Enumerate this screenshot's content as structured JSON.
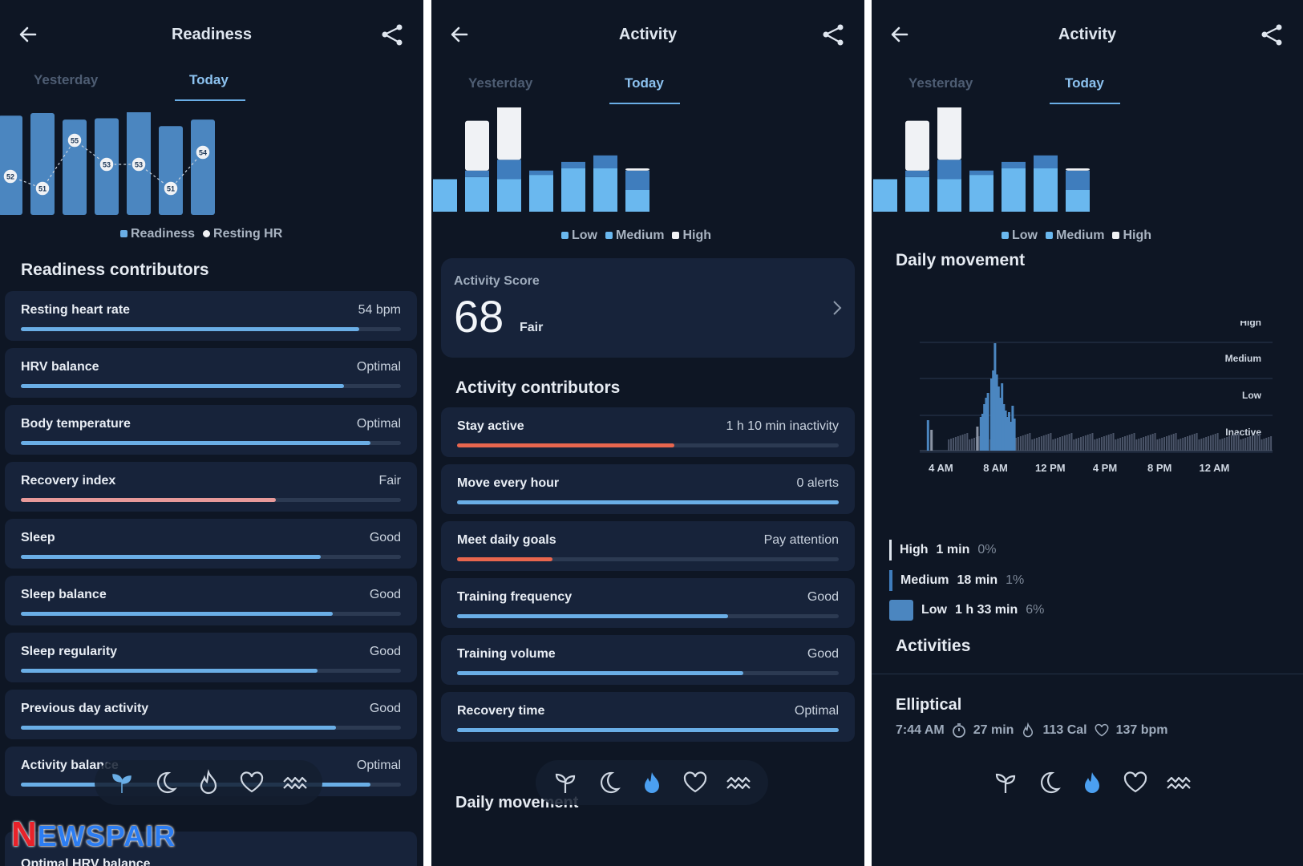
{
  "colors": {
    "background": "#0e1624",
    "card": "#17233a",
    "accent_blue": "#6aaee6",
    "bar_blue": "#4b86c0",
    "low": "#6ab8ef",
    "medium": "#3f7dbd",
    "high": "#f0f2f5",
    "warn_red": "#e8664e",
    "fair_pink": "#e89a9a"
  },
  "readiness": {
    "title": "Readiness",
    "tabs": [
      "Yesterday",
      "Today"
    ],
    "active_tab": 1,
    "chart_data": {
      "type": "bar",
      "series": [
        {
          "name": "Readiness",
          "values": [
            76,
            78,
            73,
            74,
            80,
            68,
            73
          ]
        },
        {
          "name": "Resting HR",
          "values": [
            52,
            51,
            55,
            53,
            53,
            51,
            54
          ]
        }
      ],
      "ylim": [
        0,
        100
      ],
      "hr_range": [
        50,
        56
      ]
    },
    "legend": [
      "Readiness",
      "Resting HR"
    ],
    "contributors_title": "Readiness contributors",
    "contributors": [
      {
        "label": "Resting heart rate",
        "value": "54 bpm",
        "progress": 0.89,
        "color": "#6aaee6"
      },
      {
        "label": "HRV balance",
        "value": "Optimal",
        "progress": 0.85,
        "color": "#6aaee6"
      },
      {
        "label": "Body temperature",
        "value": "Optimal",
        "progress": 0.92,
        "color": "#6aaee6"
      },
      {
        "label": "Recovery index",
        "value": "Fair",
        "progress": 0.67,
        "color": "#e89a9a"
      },
      {
        "label": "Sleep",
        "value": "Good",
        "progress": 0.79,
        "color": "#6aaee6"
      },
      {
        "label": "Sleep balance",
        "value": "Good",
        "progress": 0.82,
        "color": "#6aaee6"
      },
      {
        "label": "Sleep regularity",
        "value": "Good",
        "progress": 0.78,
        "color": "#6aaee6"
      },
      {
        "label": "Previous day activity",
        "value": "Good",
        "progress": 0.83,
        "color": "#6aaee6"
      },
      {
        "label": "Activity balance",
        "value": "Optimal",
        "progress": 0.92,
        "color": "#6aaee6"
      }
    ],
    "next_partial_title": "Optimal HRV balance"
  },
  "activity": {
    "title": "Activity",
    "tabs": [
      "Yesterday",
      "Today"
    ],
    "active_tab": 1,
    "chart_data": {
      "type": "bar",
      "stacked": true,
      "series": [
        {
          "name": "Low",
          "values": [
            30,
            32,
            30,
            34,
            40,
            40,
            20
          ]
        },
        {
          "name": "Medium",
          "values": [
            0,
            6,
            18,
            4,
            6,
            12,
            18
          ]
        },
        {
          "name": "High",
          "values": [
            0,
            46,
            52,
            0,
            0,
            0,
            2
          ]
        }
      ]
    },
    "legend": [
      "Low",
      "Medium",
      "High"
    ],
    "score_label": "Activity Score",
    "score_value": "68",
    "score_qualifier": "Fair",
    "contributors_title": "Activity contributors",
    "contributors": [
      {
        "label": "Stay active",
        "value": "1 h 10 min inactivity",
        "progress": 0.57,
        "color": "#e8664e"
      },
      {
        "label": "Move every hour",
        "value": "0 alerts",
        "progress": 1.0,
        "color": "#6aaee6"
      },
      {
        "label": "Meet daily goals",
        "value": "Pay attention",
        "progress": 0.25,
        "color": "#e8664e"
      },
      {
        "label": "Training frequency",
        "value": "Good",
        "progress": 0.71,
        "color": "#6aaee6"
      },
      {
        "label": "Training volume",
        "value": "Good",
        "progress": 0.75,
        "color": "#6aaee6"
      },
      {
        "label": "Recovery time",
        "value": "Optimal",
        "progress": 1.0,
        "color": "#6aaee6"
      }
    ],
    "daily_movement_title": "Daily movement"
  },
  "activity_detail": {
    "title": "Activity",
    "tabs": [
      "Yesterday",
      "Today"
    ],
    "active_tab": 1,
    "legend": [
      "Low",
      "Medium",
      "High"
    ],
    "daily_movement_title": "Daily movement",
    "movement_chart": {
      "type": "bar",
      "levels": [
        "High",
        "Medium",
        "Low",
        "Inactive"
      ],
      "x_ticks": [
        "4 AM",
        "8 AM",
        "12 PM",
        "4 PM",
        "8 PM",
        "12 AM"
      ]
    },
    "summary": [
      {
        "level": "High",
        "duration": "1 min",
        "percent": "0%"
      },
      {
        "level": "Medium",
        "duration": "18 min",
        "percent": "1%"
      },
      {
        "level": "Low",
        "duration": "1 h 33 min",
        "percent": "6%"
      }
    ],
    "activities_title": "Activities",
    "activity_item": {
      "name": "Elliptical",
      "time": "7:44 AM",
      "duration": "27 min",
      "calories": "113 Cal",
      "heart_rate": "137 bpm"
    }
  },
  "brand": {
    "first": "N",
    "rest": "EWSPAIR"
  }
}
